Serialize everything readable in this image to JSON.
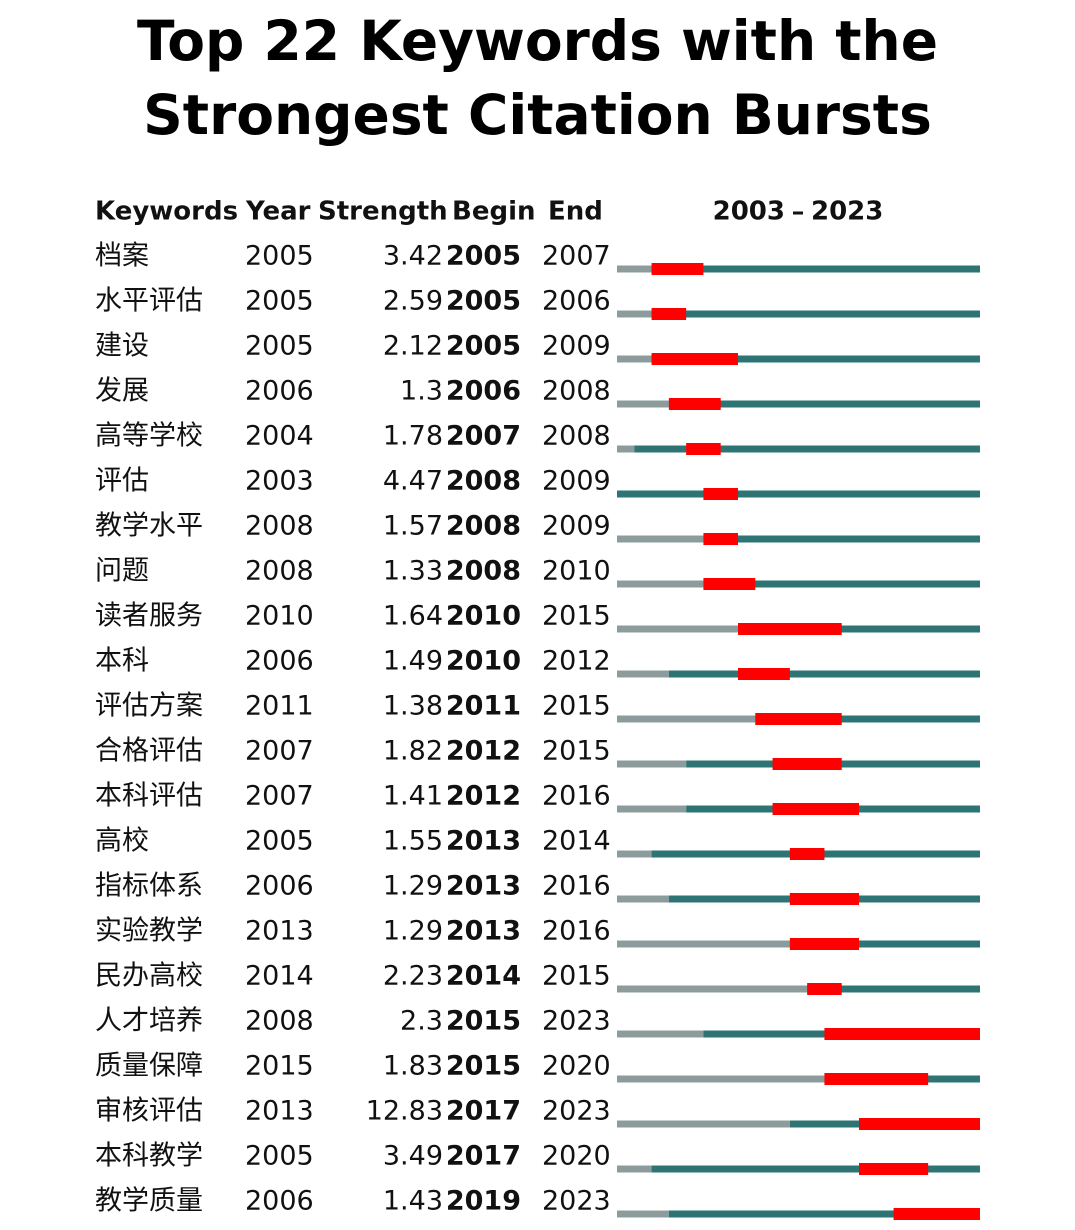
{
  "title": "Top 22 Keywords with the Strongest Citation Bursts",
  "header": {
    "keyword": "Keywords",
    "year": "Year",
    "strength": "Strength",
    "begin": "Begin",
    "end": "End"
  },
  "timeline": {
    "start": 2003,
    "end": 2023
  },
  "rows": [
    {
      "keyword": "档案",
      "year": 2005,
      "strength": 3.42,
      "begin": 2005,
      "end": 2007
    },
    {
      "keyword": "水平评估",
      "year": 2005,
      "strength": 2.59,
      "begin": 2005,
      "end": 2006
    },
    {
      "keyword": "建设",
      "year": 2005,
      "strength": 2.12,
      "begin": 2005,
      "end": 2009
    },
    {
      "keyword": "发展",
      "year": 2006,
      "strength": 1.3,
      "begin": 2006,
      "end": 2008
    },
    {
      "keyword": "高等学校",
      "year": 2004,
      "strength": 1.78,
      "begin": 2007,
      "end": 2008
    },
    {
      "keyword": "评估",
      "year": 2003,
      "strength": 4.47,
      "begin": 2008,
      "end": 2009
    },
    {
      "keyword": "教学水平",
      "year": 2008,
      "strength": 1.57,
      "begin": 2008,
      "end": 2009
    },
    {
      "keyword": "问题",
      "year": 2008,
      "strength": 1.33,
      "begin": 2008,
      "end": 2010
    },
    {
      "keyword": "读者服务",
      "year": 2010,
      "strength": 1.64,
      "begin": 2010,
      "end": 2015
    },
    {
      "keyword": "本科",
      "year": 2006,
      "strength": 1.49,
      "begin": 2010,
      "end": 2012
    },
    {
      "keyword": "评估方案",
      "year": 2011,
      "strength": 1.38,
      "begin": 2011,
      "end": 2015
    },
    {
      "keyword": "合格评估",
      "year": 2007,
      "strength": 1.82,
      "begin": 2012,
      "end": 2015
    },
    {
      "keyword": "本科评估",
      "year": 2007,
      "strength": 1.41,
      "begin": 2012,
      "end": 2016
    },
    {
      "keyword": "高校",
      "year": 2005,
      "strength": 1.55,
      "begin": 2013,
      "end": 2014
    },
    {
      "keyword": "指标体系",
      "year": 2006,
      "strength": 1.29,
      "begin": 2013,
      "end": 2016
    },
    {
      "keyword": "实验教学",
      "year": 2013,
      "strength": 1.29,
      "begin": 2013,
      "end": 2016
    },
    {
      "keyword": "民办高校",
      "year": 2014,
      "strength": 2.23,
      "begin": 2014,
      "end": 2015
    },
    {
      "keyword": "人才培养",
      "year": 2008,
      "strength": 2.3,
      "begin": 2015,
      "end": 2023
    },
    {
      "keyword": "质量保障",
      "year": 2015,
      "strength": 1.83,
      "begin": 2015,
      "end": 2020
    },
    {
      "keyword": "审核评估",
      "year": 2013,
      "strength": 12.83,
      "begin": 2017,
      "end": 2023
    },
    {
      "keyword": "本科教学",
      "year": 2005,
      "strength": 3.49,
      "begin": 2017,
      "end": 2020
    },
    {
      "keyword": "教学质量",
      "year": 2006,
      "strength": 1.43,
      "begin": 2019,
      "end": 2023
    }
  ]
}
